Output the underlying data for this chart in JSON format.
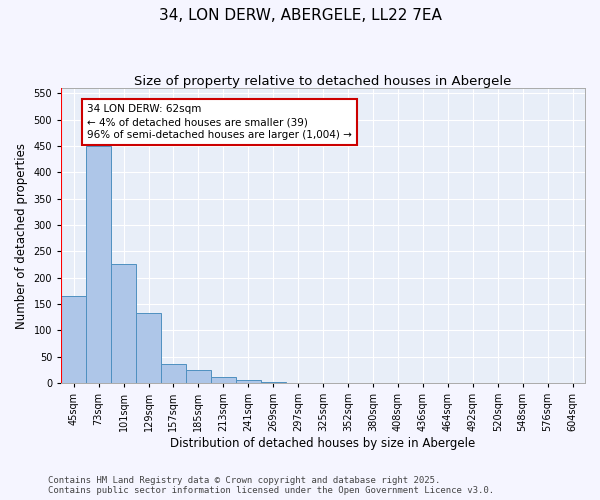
{
  "title": "34, LON DERW, ABERGELE, LL22 7EA",
  "subtitle": "Size of property relative to detached houses in Abergele",
  "xlabel": "Distribution of detached houses by size in Abergele",
  "ylabel": "Number of detached properties",
  "categories": [
    "45sqm",
    "73sqm",
    "101sqm",
    "129sqm",
    "157sqm",
    "185sqm",
    "213sqm",
    "241sqm",
    "269sqm",
    "297sqm",
    "325sqm",
    "352sqm",
    "380sqm",
    "408sqm",
    "436sqm",
    "464sqm",
    "492sqm",
    "520sqm",
    "548sqm",
    "576sqm",
    "604sqm"
  ],
  "values": [
    165,
    450,
    225,
    133,
    37,
    25,
    11,
    6,
    2,
    1,
    1,
    0,
    0,
    0,
    0,
    0,
    0,
    0,
    0,
    0,
    0
  ],
  "bar_color": "#aec6e8",
  "bar_edge_color": "#4f90c0",
  "ylim": [
    0,
    560
  ],
  "yticks": [
    0,
    50,
    100,
    150,
    200,
    250,
    300,
    350,
    400,
    450,
    500,
    550
  ],
  "annotation_text": "34 LON DERW: 62sqm\n← 4% of detached houses are smaller (39)\n96% of semi-detached houses are larger (1,004) →",
  "annotation_box_color": "#ffffff",
  "annotation_box_edge_color": "#cc0000",
  "footer_line1": "Contains HM Land Registry data © Crown copyright and database right 2025.",
  "footer_line2": "Contains public sector information licensed under the Open Government Licence v3.0.",
  "bg_color": "#e8eef8",
  "grid_color": "#ffffff",
  "title_fontsize": 11,
  "subtitle_fontsize": 9.5,
  "axis_label_fontsize": 8.5,
  "tick_fontsize": 7,
  "annotation_fontsize": 7.5,
  "footer_fontsize": 6.5,
  "fig_bg_color": "#f5f5ff"
}
